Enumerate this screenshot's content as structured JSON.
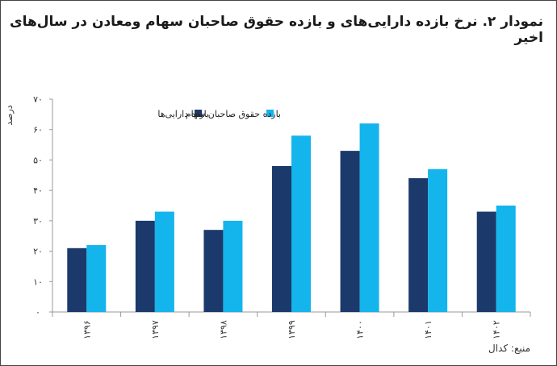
{
  "title": "نمودار ۲. نرخ بازده دارایی‌های و بازده حقوق صاحبان سهام ومعادن در سال‌های اخیر",
  "source": "منبع: کدال",
  "chart_data": {
    "type": "bar",
    "categories": [
      "۱۳۹۶",
      "۱۳۹۷",
      "۱۳۹۸",
      "۱۳۹۹",
      "۱۴۰۰",
      "۱۴۰۱",
      "۱۴۰۲"
    ],
    "series": [
      {
        "name": "بازده دارایی‌ها",
        "color": "#1b3a6b",
        "values": [
          21,
          30,
          27,
          48,
          53,
          44,
          33
        ]
      },
      {
        "name": "بازده حقوق صاحبان سهام",
        "color": "#14b4ec",
        "values": [
          22,
          33,
          30,
          58,
          62,
          47,
          35
        ]
      }
    ],
    "ylabel": "درصد",
    "ylim": [
      0,
      70
    ],
    "yticks": [
      0,
      10,
      20,
      30,
      40,
      50,
      60,
      70
    ],
    "ytick_labels": [
      "۰",
      "۱۰",
      "۲۰",
      "۳۰",
      "۴۰",
      "۵۰",
      "۶۰",
      "۷۰"
    ],
    "grid": false,
    "legend_position": "top"
  }
}
